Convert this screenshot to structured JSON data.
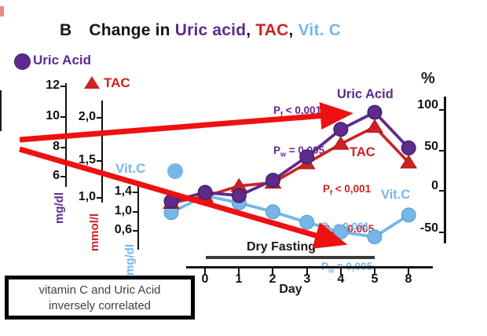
{
  "title": {
    "panel": "B",
    "change_in": "Change in ",
    "uric": "Uric acid",
    "comma1": ", ",
    "tac": "TAC",
    "comma2": ", ",
    "vitc": "Vit. C"
  },
  "colors": {
    "purple": "#5e2b8d",
    "red": "#cd2222",
    "blue": "#76b7e8",
    "arrow": "#ee1111",
    "axis": "#111111",
    "fasting_bar": "#3a3a3a"
  },
  "legend": {
    "uric": "Uric Acid",
    "tac": "TAC",
    "vitc": "Vit.C"
  },
  "left_axes": {
    "uric": {
      "unit": "mg/dl",
      "ticks": [
        "12",
        "10",
        "8",
        "6"
      ]
    },
    "tac": {
      "unit": "mmol/l",
      "ticks": [
        "2,0",
        "1,5",
        "1,0"
      ]
    },
    "vitc": {
      "unit": "mg/dl",
      "ticks": [
        "1,4",
        "1,0",
        "0,6"
      ]
    }
  },
  "right_axis": {
    "unit": "%",
    "ticks": [
      "100",
      "50",
      "0",
      "-50"
    ]
  },
  "x_axis": {
    "label": "Day",
    "ticks": [
      "0",
      "1",
      "2",
      "3",
      "4",
      "5",
      "8"
    ]
  },
  "fasting": {
    "label": "Dry Fasting"
  },
  "series_labels": {
    "uric": "Uric Acid",
    "tac": "TAC",
    "vitc": "Vit.C"
  },
  "stats": {
    "uric": {
      "p1": "P",
      "s1": "f",
      "v1": " < 0,001",
      "p2": "P",
      "s2": "w",
      "v2": " = 0,005"
    },
    "tac": {
      "p1": "P",
      "s1": "f",
      "v1": " < 0,001",
      "p2": "P",
      "s2": "w",
      "v2": " = 0,005"
    },
    "vitc": {
      "p1": "P",
      "s1": "f",
      "v1": " < 0,001",
      "p2": "P",
      "s2": "w",
      "v2": " = 0,005"
    }
  },
  "note": {
    "line1": "vitamin C and Uric Acid",
    "line2": "inversely correlated"
  },
  "chart_data": {
    "type": "line",
    "panel": "B",
    "title": "Change in Uric acid, TAC, Vit. C",
    "xlabel": "Day",
    "x_categories": [
      "-1",
      "0",
      "1",
      "2",
      "3",
      "4",
      "5",
      "8"
    ],
    "x_tick_labels": [
      "0",
      "1",
      "2",
      "3",
      "4",
      "5",
      "8"
    ],
    "right_axis": {
      "label": "%",
      "ticks": [
        100,
        50,
        0,
        -50
      ],
      "range": [
        -75,
        115
      ]
    },
    "grid": false,
    "legend_position": "left",
    "series": [
      {
        "name": "Uric Acid",
        "color": "#5e2b8d",
        "marker": "circle",
        "axis_unit": "mg/dl",
        "axis_ticks": [
          12,
          10,
          8,
          6
        ],
        "percent_change": [
          -13,
          -2,
          -6,
          13,
          42,
          76,
          97,
          53
        ],
        "p_f": "< 0,001",
        "p_w": "= 0,005"
      },
      {
        "name": "TAC",
        "color": "#cd2222",
        "marker": "triangle",
        "axis_unit": "mmol/l",
        "axis_ticks": [
          2.0,
          1.5,
          1.0
        ],
        "percent_change": [
          -15,
          -7,
          6,
          10,
          34,
          58,
          79,
          35
        ],
        "p_f": "< 0,001",
        "p_w": "= 0,005"
      },
      {
        "name": "Vit.C",
        "color": "#76b7e8",
        "marker": "circle",
        "axis_unit": "mg/dl",
        "axis_ticks": [
          1.4,
          1.0,
          0.6
        ],
        "percent_change": [
          -27,
          -6,
          -15,
          -26,
          -39,
          -51,
          -57,
          -30
        ],
        "p_f": "< 0,001",
        "p_w": "= 0,005"
      }
    ],
    "annotations": {
      "dry_fasting_label": "Dry Fasting",
      "dry_fasting_span_days": [
        0,
        5
      ],
      "note": "vitamin C and Uric Acid inversely correlated",
      "arrows": [
        {
          "from": [
            25,
            178
          ],
          "to": [
            440,
            145
          ],
          "points_at": "Uric Acid peak"
        },
        {
          "from": [
            25,
            190
          ],
          "to": [
            433,
            309
          ],
          "points_at": "Vit.C minimum"
        }
      ]
    }
  }
}
